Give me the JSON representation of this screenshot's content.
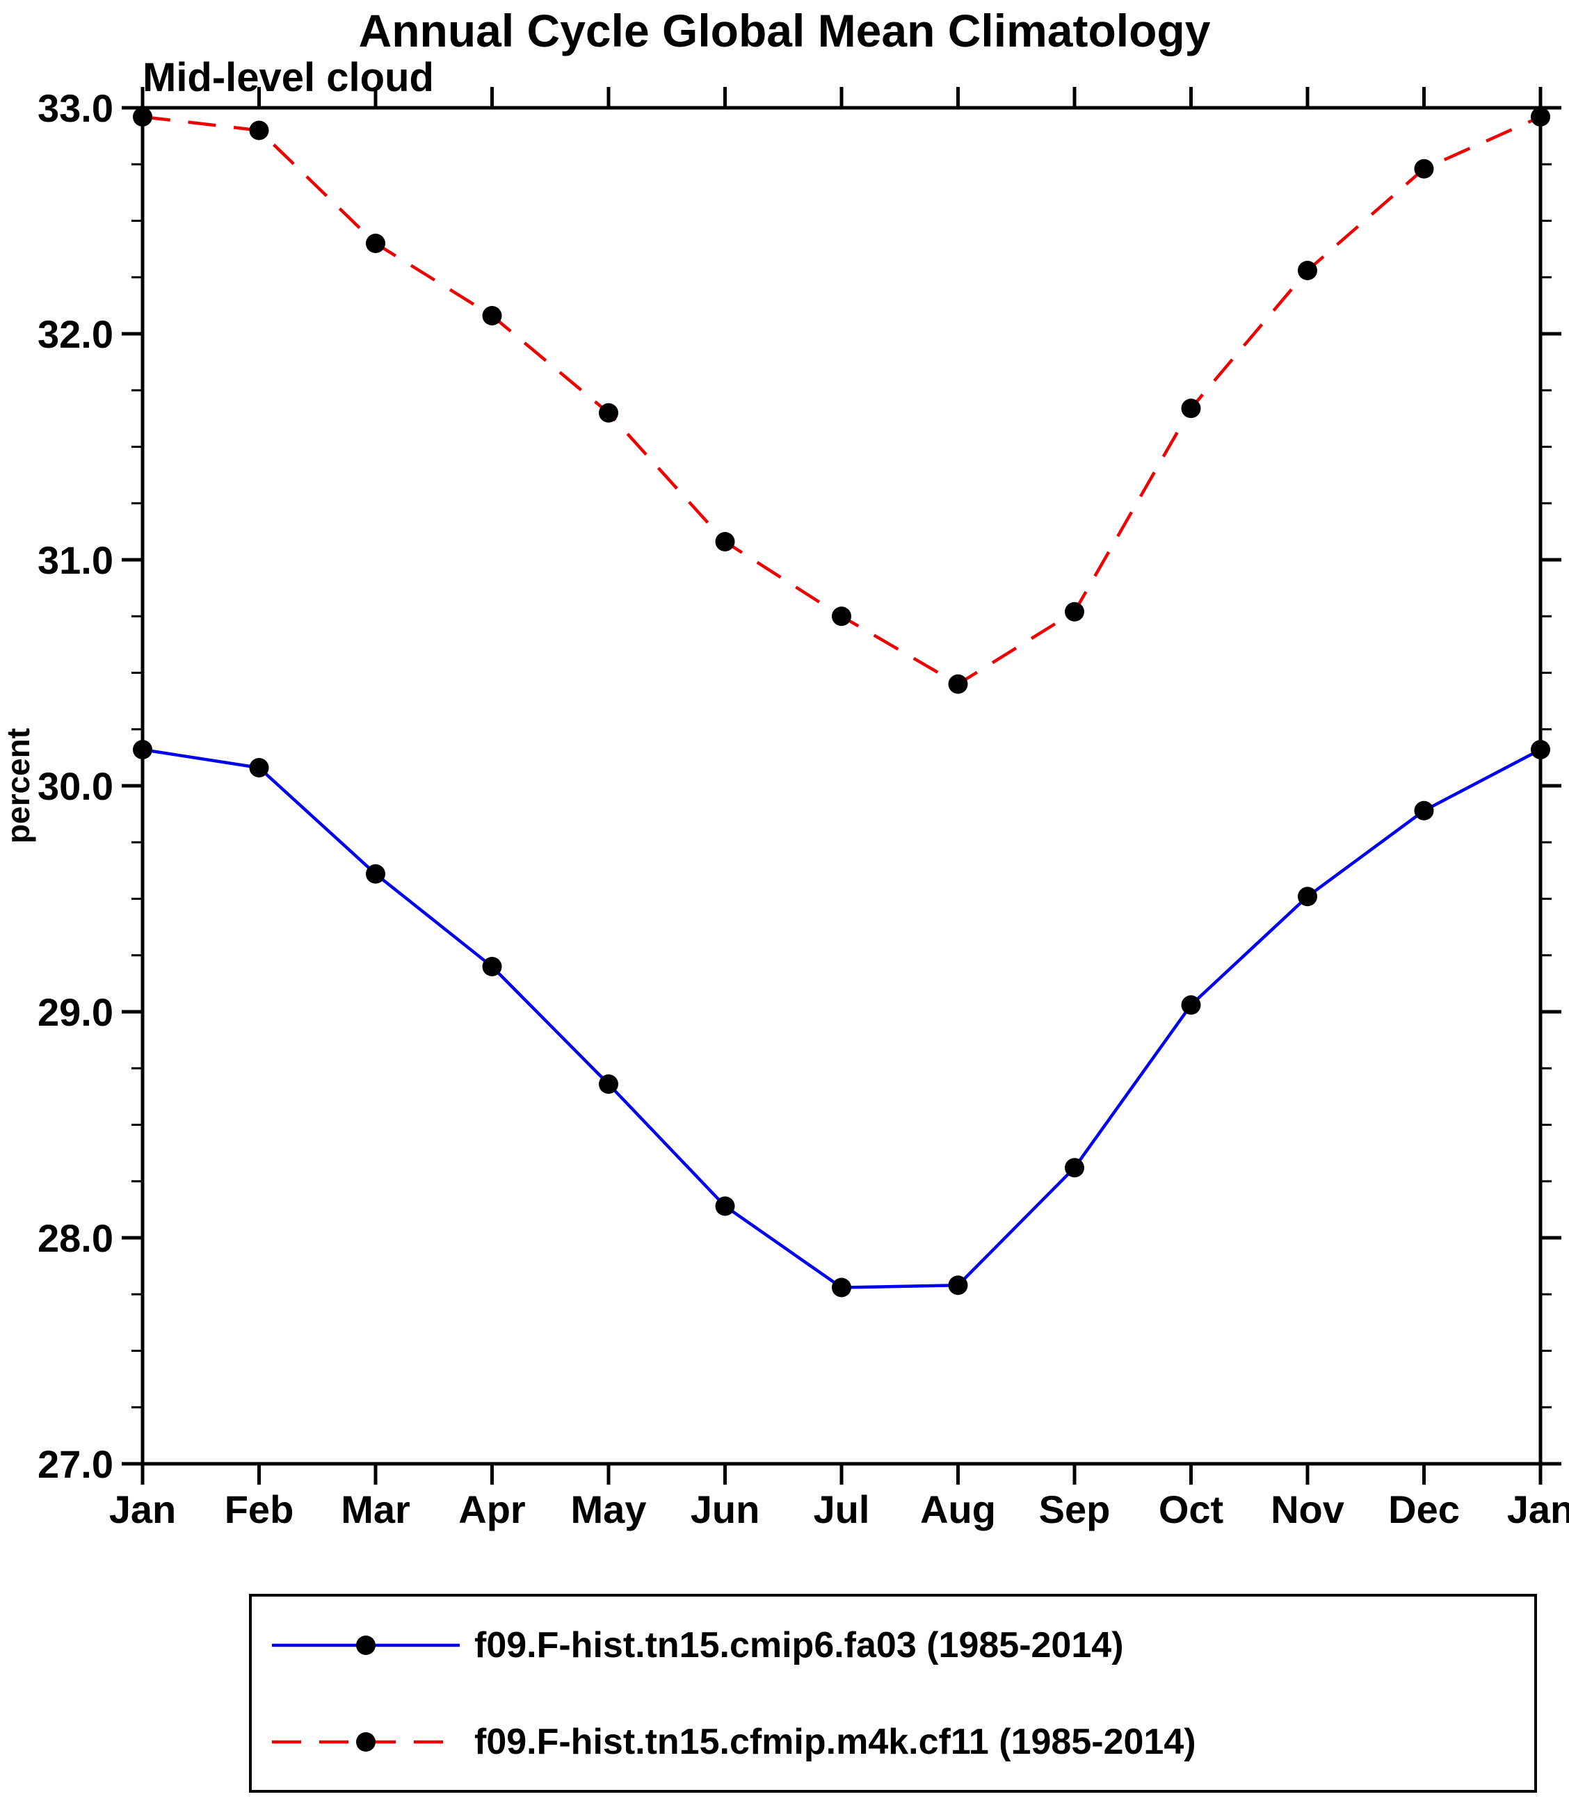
{
  "page": {
    "title": "Annual Cycle Global Mean Climatology",
    "subtitle": "Mid-level cloud",
    "ylabel": "percent"
  },
  "chart_data": {
    "type": "line",
    "title": "Annual Cycle Global Mean Climatology",
    "subtitle": "Mid-level cloud",
    "xlabel": "",
    "ylabel": "percent",
    "categories": [
      "Jan",
      "Feb",
      "Mar",
      "Apr",
      "May",
      "Jun",
      "Jul",
      "Aug",
      "Sep",
      "Oct",
      "Nov",
      "Dec",
      "Jan"
    ],
    "ylim": [
      27.0,
      33.0
    ],
    "yticks": [
      27,
      28,
      29,
      30,
      31,
      32,
      33
    ],
    "ytick_labels": [
      "27.0",
      "28.0",
      "29.0",
      "30.0",
      "31.0",
      "32.0",
      "33.0"
    ],
    "minor_tick_step": 0.25,
    "grid": false,
    "legend_position": "bottom",
    "marker_color": "#000000",
    "series": [
      {
        "name": "f09.F-hist.tn15.cmip6.fa03 (1985-2014)",
        "color": "#0000ee",
        "style": "solid",
        "marker": "circle",
        "values": [
          30.16,
          30.08,
          29.61,
          29.2,
          28.68,
          28.14,
          27.78,
          27.79,
          28.31,
          29.03,
          29.51,
          29.89,
          30.16
        ]
      },
      {
        "name": "f09.F-hist.tn15.cfmip.m4k.cf11 (1985-2014)",
        "color": "#ee0000",
        "style": "dashed",
        "marker": "circle",
        "values": [
          32.96,
          32.9,
          32.4,
          32.08,
          31.65,
          31.08,
          30.75,
          30.45,
          30.77,
          31.67,
          32.28,
          32.73,
          32.96
        ]
      }
    ]
  }
}
